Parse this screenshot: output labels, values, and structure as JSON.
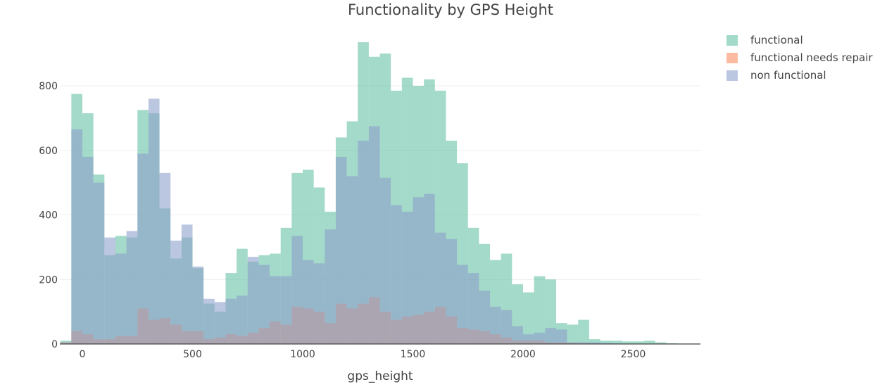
{
  "chart_data": {
    "type": "bar",
    "mode": "overlay-histogram",
    "title": "Functionality by GPS Height",
    "xlabel": "gps_height",
    "ylabel": "",
    "xlim": [
      -100,
      2800
    ],
    "ylim": [
      0,
      1000
    ],
    "bin_start": -100,
    "bin_width": 50,
    "x_ticks": [
      0,
      500,
      1000,
      1500,
      2000,
      2500
    ],
    "y_ticks": [
      0,
      200,
      400,
      600,
      800
    ],
    "grid": true,
    "legend_position": "top-right",
    "series": [
      {
        "name": "functional",
        "color": "#66c2a5",
        "values": [
          10,
          775,
          715,
          525,
          275,
          335,
          330,
          725,
          715,
          420,
          265,
          330,
          235,
          125,
          100,
          220,
          295,
          255,
          275,
          280,
          360,
          530,
          540,
          485,
          410,
          640,
          690,
          935,
          890,
          900,
          785,
          825,
          800,
          820,
          785,
          630,
          560,
          360,
          310,
          260,
          280,
          185,
          160,
          210,
          200,
          65,
          60,
          75,
          15,
          10,
          10,
          8,
          8,
          10,
          5,
          2,
          0,
          0
        ]
      },
      {
        "name": "functional needs repair",
        "color": "#fc8d62",
        "values": [
          5,
          40,
          30,
          15,
          15,
          25,
          25,
          110,
          75,
          80,
          60,
          40,
          40,
          15,
          20,
          30,
          25,
          35,
          50,
          70,
          60,
          115,
          110,
          100,
          65,
          125,
          110,
          125,
          145,
          100,
          75,
          85,
          90,
          100,
          115,
          85,
          50,
          45,
          40,
          30,
          20,
          10,
          10,
          10,
          5,
          5,
          3,
          2,
          1,
          0,
          0,
          0,
          0,
          0,
          0,
          0,
          0,
          0
        ]
      },
      {
        "name": "non functional",
        "color": "#8da0cb",
        "values": [
          5,
          665,
          580,
          500,
          330,
          280,
          350,
          590,
          760,
          530,
          320,
          370,
          240,
          140,
          130,
          140,
          150,
          270,
          245,
          210,
          210,
          335,
          260,
          250,
          355,
          580,
          520,
          630,
          675,
          515,
          430,
          410,
          455,
          465,
          345,
          325,
          245,
          220,
          165,
          115,
          105,
          55,
          30,
          35,
          50,
          45,
          5,
          5,
          5,
          3,
          2,
          1,
          0,
          0,
          0,
          0,
          0,
          0
        ]
      }
    ]
  }
}
